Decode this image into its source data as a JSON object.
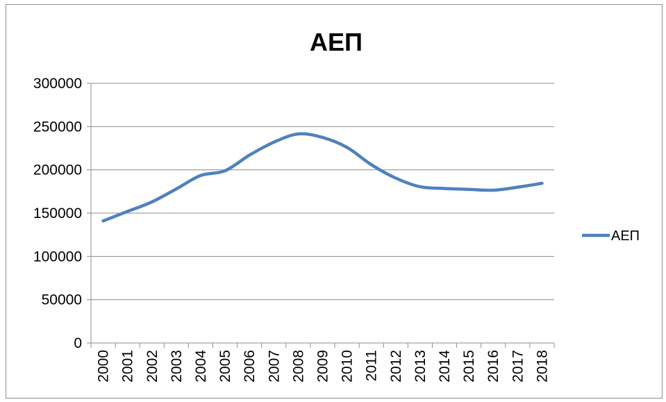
{
  "chart_data": {
    "type": "line",
    "title": "ΑΕΠ",
    "x": [
      "2000",
      "2001",
      "2002",
      "2003",
      "2004",
      "2005",
      "2006",
      "2007",
      "2008",
      "2009",
      "2010",
      "2011",
      "2012",
      "2013",
      "2014",
      "2015",
      "2016",
      "2017",
      "2018"
    ],
    "series": [
      {
        "name": "ΑΕΠ",
        "values": [
          141000,
          152000,
          163000,
          178000,
          193500,
          199000,
          217000,
          232000,
          241500,
          237500,
          226000,
          206000,
          190500,
          180500,
          178500,
          177500,
          176500,
          180000,
          184500
        ]
      }
    ],
    "ylim": [
      0,
      300000
    ],
    "yticks": [
      "0",
      "50000",
      "100000",
      "150000",
      "200000",
      "250000",
      "300000"
    ],
    "grid": "horizontal",
    "legend": "right",
    "colors": {
      "series": "#4f81bd",
      "grid": "#8c8c8c"
    }
  }
}
